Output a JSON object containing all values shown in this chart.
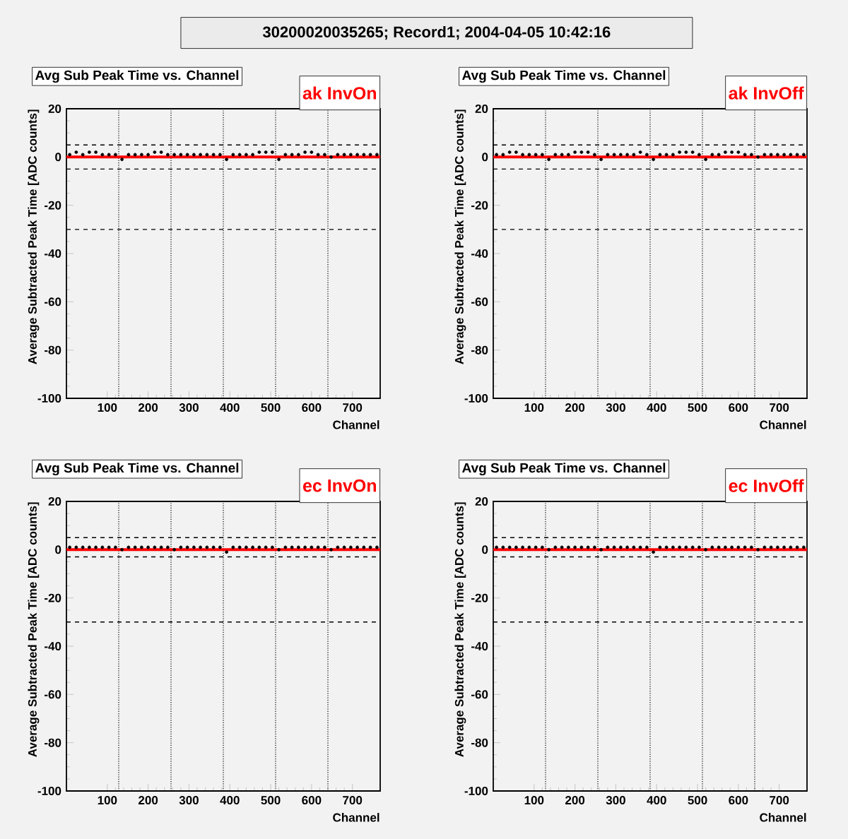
{
  "chart_data": [
    {
      "type": "scatter",
      "title": "Avg Sub Peak Time vs. Channel",
      "xlabel": "Channel",
      "ylabel": "Average Subtracted Peak Time [ADC counts]",
      "annotations": [
        "30200020035265; Record1; 2004-04-05 10:42:16",
        "ak InvOn"
      ],
      "xlim": [
        0,
        768
      ],
      "ylim": [
        -100,
        20
      ],
      "xticks": [
        100,
        200,
        300,
        400,
        500,
        600,
        700
      ],
      "yticks": [
        -100,
        -80,
        -60,
        -40,
        -20,
        0,
        20
      ],
      "grid": false,
      "ref_lines": [
        {
          "axis": "x",
          "value": 128,
          "line_style": "dotted"
        },
        {
          "axis": "x",
          "value": 256,
          "line_style": "dotted"
        },
        {
          "axis": "x",
          "value": 384,
          "line_style": "dotted"
        },
        {
          "axis": "x",
          "value": 512,
          "line_style": "dotted"
        },
        {
          "axis": "x",
          "value": 640,
          "line_style": "dotted"
        },
        {
          "axis": "y",
          "value": 5,
          "line_style": "dashed"
        },
        {
          "axis": "y",
          "value": -5,
          "line_style": "dashed"
        },
        {
          "axis": "y",
          "value": -30,
          "line_style": "dashed"
        }
      ],
      "series": [
        {
          "marker": "circle",
          "color": "#000000",
          "x": [
            8,
            24,
            40,
            56,
            72,
            88,
            104,
            120,
            136,
            152,
            168,
            184,
            200,
            216,
            232,
            248,
            264,
            280,
            296,
            312,
            328,
            344,
            360,
            376,
            392,
            408,
            424,
            440,
            456,
            472,
            488,
            504,
            520,
            536,
            552,
            568,
            584,
            600,
            616,
            632,
            648,
            664,
            680,
            696,
            712,
            728,
            744,
            760
          ],
          "values": [
            1,
            2,
            1,
            2,
            2,
            1,
            1,
            1,
            -1,
            1,
            1,
            1,
            1,
            2,
            2,
            1,
            1,
            1,
            1,
            1,
            1,
            1,
            1,
            1,
            -1,
            1,
            1,
            1,
            1,
            2,
            2,
            2,
            -1,
            1,
            1,
            1,
            2,
            2,
            1,
            1,
            0,
            1,
            1,
            1,
            1,
            1,
            1,
            1
          ]
        },
        {
          "type": "line",
          "color": "#ff0000",
          "x": [
            0,
            768
          ],
          "values": [
            0,
            0
          ]
        }
      ]
    },
    {
      "type": "scatter",
      "title": "Avg Sub Peak Time vs. Channel",
      "xlabel": "Channel",
      "ylabel": "Average Subtracted Peak Time [ADC counts]",
      "annotations": [
        "ak InvOff"
      ],
      "xlim": [
        0,
        768
      ],
      "ylim": [
        -100,
        20
      ],
      "xticks": [
        100,
        200,
        300,
        400,
        500,
        600,
        700
      ],
      "yticks": [
        -100,
        -80,
        -60,
        -40,
        -20,
        0,
        20
      ],
      "grid": false,
      "ref_lines": [
        {
          "axis": "x",
          "value": 128,
          "line_style": "dotted"
        },
        {
          "axis": "x",
          "value": 256,
          "line_style": "dotted"
        },
        {
          "axis": "x",
          "value": 384,
          "line_style": "dotted"
        },
        {
          "axis": "x",
          "value": 512,
          "line_style": "dotted"
        },
        {
          "axis": "x",
          "value": 640,
          "line_style": "dotted"
        },
        {
          "axis": "y",
          "value": 5,
          "line_style": "dashed"
        },
        {
          "axis": "y",
          "value": -5,
          "line_style": "dashed"
        },
        {
          "axis": "y",
          "value": -30,
          "line_style": "dashed"
        }
      ],
      "series": [
        {
          "marker": "circle",
          "color": "#000000",
          "x": [
            8,
            24,
            40,
            56,
            72,
            88,
            104,
            120,
            136,
            152,
            168,
            184,
            200,
            216,
            232,
            248,
            264,
            280,
            296,
            312,
            328,
            344,
            360,
            376,
            392,
            408,
            424,
            440,
            456,
            472,
            488,
            504,
            520,
            536,
            552,
            568,
            584,
            600,
            616,
            632,
            648,
            664,
            680,
            696,
            712,
            728,
            744,
            760
          ],
          "values": [
            1,
            1,
            2,
            2,
            1,
            1,
            1,
            1,
            -1,
            1,
            1,
            1,
            2,
            2,
            2,
            1,
            -1,
            1,
            1,
            1,
            1,
            1,
            2,
            1,
            -1,
            1,
            1,
            1,
            2,
            2,
            2,
            1,
            -1,
            1,
            1,
            2,
            2,
            2,
            1,
            1,
            0,
            1,
            1,
            1,
            1,
            1,
            1,
            1
          ]
        },
        {
          "type": "line",
          "color": "#ff0000",
          "x": [
            0,
            768
          ],
          "values": [
            0,
            0
          ]
        }
      ]
    },
    {
      "type": "scatter",
      "title": "Avg Sub Peak Time vs. Channel",
      "xlabel": "Channel",
      "ylabel": "Average Subtracted Peak Time [ADC counts]",
      "annotations": [
        "ec InvOn"
      ],
      "xlim": [
        0,
        768
      ],
      "ylim": [
        -100,
        20
      ],
      "xticks": [
        100,
        200,
        300,
        400,
        500,
        600,
        700
      ],
      "yticks": [
        -100,
        -80,
        -60,
        -40,
        -20,
        0,
        20
      ],
      "grid": false,
      "ref_lines": [
        {
          "axis": "x",
          "value": 128,
          "line_style": "dotted"
        },
        {
          "axis": "x",
          "value": 256,
          "line_style": "dotted"
        },
        {
          "axis": "x",
          "value": 384,
          "line_style": "dotted"
        },
        {
          "axis": "x",
          "value": 512,
          "line_style": "dotted"
        },
        {
          "axis": "x",
          "value": 640,
          "line_style": "dotted"
        },
        {
          "axis": "y",
          "value": 5,
          "line_style": "dashed"
        },
        {
          "axis": "y",
          "value": -3,
          "line_style": "dashed"
        },
        {
          "axis": "y",
          "value": -30,
          "line_style": "dashed"
        }
      ],
      "series": [
        {
          "marker": "circle",
          "color": "#000000",
          "x": [
            8,
            24,
            40,
            56,
            72,
            88,
            104,
            120,
            136,
            152,
            168,
            184,
            200,
            216,
            232,
            248,
            264,
            280,
            296,
            312,
            328,
            344,
            360,
            376,
            392,
            408,
            424,
            440,
            456,
            472,
            488,
            504,
            520,
            536,
            552,
            568,
            584,
            600,
            616,
            632,
            648,
            664,
            680,
            696,
            712,
            728,
            744,
            760
          ],
          "values": [
            1,
            1,
            1,
            1,
            1,
            1,
            1,
            1,
            0,
            1,
            1,
            1,
            1,
            1,
            1,
            1,
            0,
            1,
            1,
            1,
            1,
            1,
            1,
            1,
            -1,
            1,
            1,
            1,
            1,
            1,
            1,
            1,
            0,
            1,
            1,
            1,
            1,
            1,
            1,
            1,
            0,
            1,
            1,
            1,
            1,
            1,
            1,
            1
          ]
        },
        {
          "type": "line",
          "color": "#ff0000",
          "x": [
            0,
            768
          ],
          "values": [
            0,
            0
          ]
        }
      ]
    },
    {
      "type": "scatter",
      "title": "Avg Sub Peak Time vs. Channel",
      "xlabel": "Channel",
      "ylabel": "Average Subtracted Peak Time [ADC counts]",
      "annotations": [
        "ec InvOff"
      ],
      "xlim": [
        0,
        768
      ],
      "ylim": [
        -100,
        20
      ],
      "xticks": [
        100,
        200,
        300,
        400,
        500,
        600,
        700
      ],
      "yticks": [
        -100,
        -80,
        -60,
        -40,
        -20,
        0,
        20
      ],
      "grid": false,
      "ref_lines": [
        {
          "axis": "x",
          "value": 128,
          "line_style": "dotted"
        },
        {
          "axis": "x",
          "value": 256,
          "line_style": "dotted"
        },
        {
          "axis": "x",
          "value": 384,
          "line_style": "dotted"
        },
        {
          "axis": "x",
          "value": 512,
          "line_style": "dotted"
        },
        {
          "axis": "x",
          "value": 640,
          "line_style": "dotted"
        },
        {
          "axis": "y",
          "value": 5,
          "line_style": "dashed"
        },
        {
          "axis": "y",
          "value": -3,
          "line_style": "dashed"
        },
        {
          "axis": "y",
          "value": -30,
          "line_style": "dashed"
        }
      ],
      "series": [
        {
          "marker": "circle",
          "color": "#000000",
          "x": [
            8,
            24,
            40,
            56,
            72,
            88,
            104,
            120,
            136,
            152,
            168,
            184,
            200,
            216,
            232,
            248,
            264,
            280,
            296,
            312,
            328,
            344,
            360,
            376,
            392,
            408,
            424,
            440,
            456,
            472,
            488,
            504,
            520,
            536,
            552,
            568,
            584,
            600,
            616,
            632,
            648,
            664,
            680,
            696,
            712,
            728,
            744,
            760
          ],
          "values": [
            1,
            1,
            1,
            1,
            1,
            1,
            1,
            1,
            0,
            1,
            1,
            1,
            1,
            1,
            1,
            1,
            0,
            1,
            1,
            1,
            1,
            1,
            1,
            1,
            -1,
            1,
            1,
            1,
            1,
            1,
            1,
            1,
            0,
            1,
            1,
            1,
            1,
            1,
            1,
            1,
            0,
            1,
            1,
            1,
            1,
            1,
            1,
            1
          ]
        },
        {
          "type": "line",
          "color": "#ff0000",
          "x": [
            0,
            768
          ],
          "values": [
            0,
            0
          ]
        }
      ]
    }
  ]
}
